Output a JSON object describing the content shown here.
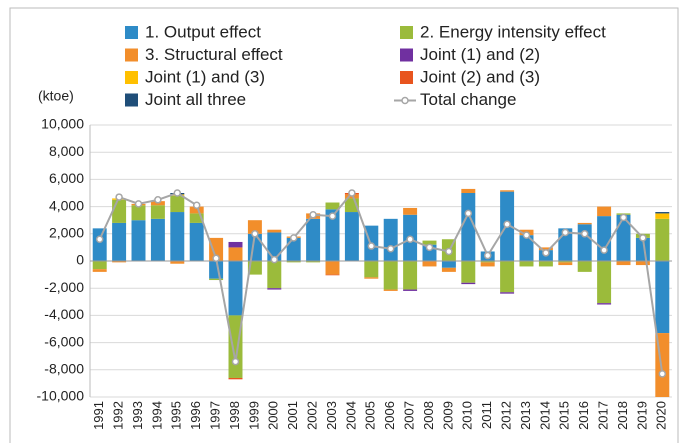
{
  "chart_data": {
    "type": "stacked_bar_line",
    "y_label": "(ktoe)",
    "categories": [
      "1991",
      "1992",
      "1993",
      "1994",
      "1995",
      "1996",
      "1997",
      "1998",
      "1999",
      "2000",
      "2001",
      "2002",
      "2003",
      "2004",
      "2005",
      "2006",
      "2007",
      "2008",
      "2009",
      "2010",
      "2011",
      "2012",
      "2013",
      "2014",
      "2015",
      "2016",
      "2017",
      "2018",
      "2019",
      "2020"
    ],
    "series": [
      {
        "name": "1. Output effect",
        "color": "#2e8bc7",
        "values": [
          2400,
          2800,
          3000,
          3100,
          3600,
          2800,
          -1300,
          -4000,
          2000,
          2100,
          1700,
          3100,
          3800,
          3600,
          2600,
          3100,
          3400,
          1200,
          -500,
          5000,
          700,
          5100,
          1900,
          800,
          2400,
          2700,
          3300,
          3400,
          1700,
          -5300
        ]
      },
      {
        "name": "2. Energy intensity effect",
        "color": "#9bbb3b",
        "values": [
          -600,
          1700,
          1100,
          1000,
          1200,
          700,
          -100,
          -4600,
          -1000,
          -2000,
          -100,
          -100,
          500,
          1000,
          -1200,
          -2100,
          -2100,
          300,
          1600,
          -1600,
          -100,
          -2300,
          -400,
          -400,
          -100,
          -800,
          -3100,
          100,
          300,
          3100
        ]
      },
      {
        "name": "3. Structural effect",
        "color": "#f28e2b",
        "values": [
          -200,
          -100,
          100,
          300,
          -200,
          500,
          1700,
          1000,
          1000,
          200,
          100,
          400,
          -1000,
          300,
          -100,
          -100,
          500,
          -400,
          -300,
          300,
          -300,
          100,
          400,
          200,
          -200,
          100,
          700,
          -300,
          -300,
          -4700
        ]
      },
      {
        "name": "Joint (1) and (2)",
        "color": "#7030a0",
        "values": [
          0,
          0,
          0,
          0,
          0,
          0,
          0,
          400,
          0,
          -100,
          0,
          0,
          0,
          0,
          0,
          0,
          -100,
          0,
          0,
          -100,
          0,
          -100,
          0,
          0,
          0,
          0,
          -100,
          0,
          0,
          0
        ]
      },
      {
        "name": "Joint (1) and (3)",
        "color": "#ffc000",
        "values": [
          0,
          100,
          0,
          0,
          100,
          0,
          0,
          0,
          0,
          0,
          0,
          0,
          0,
          0,
          0,
          0,
          0,
          0,
          0,
          0,
          0,
          0,
          0,
          0,
          0,
          0,
          0,
          0,
          0,
          400
        ]
      },
      {
        "name": "Joint (2) and (3)",
        "color": "#e8541e",
        "values": [
          0,
          0,
          0,
          0,
          0,
          0,
          0,
          -100,
          0,
          0,
          0,
          0,
          -50,
          100,
          0,
          0,
          0,
          0,
          0,
          0,
          0,
          0,
          0,
          0,
          0,
          0,
          0,
          0,
          0,
          0
        ]
      },
      {
        "name": "Joint all three",
        "color": "#1f4e79",
        "values": [
          0,
          0,
          0,
          0,
          100,
          0,
          0,
          0,
          0,
          0,
          0,
          0,
          0,
          0,
          0,
          0,
          0,
          0,
          0,
          0,
          0,
          0,
          0,
          0,
          0,
          0,
          0,
          0,
          0,
          100
        ]
      }
    ],
    "line": {
      "name": "Total change",
      "color": "#a6a6a6",
      "values": [
        1600,
        4700,
        4200,
        4500,
        5000,
        4100,
        200,
        -7400,
        2000,
        100,
        1700,
        3400,
        3300,
        5000,
        1100,
        900,
        1600,
        1000,
        700,
        3500,
        400,
        2700,
        1900,
        600,
        2100,
        2000,
        800,
        3200,
        1700,
        -8300
      ]
    },
    "ylim": [
      -10000,
      10000
    ],
    "yticks": [
      {
        "value": -10000,
        "label": "-10,000"
      },
      {
        "value": -8000,
        "label": "-8,000"
      },
      {
        "value": -6000,
        "label": "-6,000"
      },
      {
        "value": -4000,
        "label": "-4,000"
      },
      {
        "value": -2000,
        "label": "-2,000"
      },
      0,
      {
        "value": 2000,
        "label": "2,000"
      },
      {
        "value": 4000,
        "label": "4,000"
      },
      {
        "value": 6000,
        "label": "6,000"
      },
      {
        "value": 8000,
        "label": "8,000"
      },
      {
        "value": 10000,
        "label": "10,000"
      }
    ],
    "grid": true
  }
}
